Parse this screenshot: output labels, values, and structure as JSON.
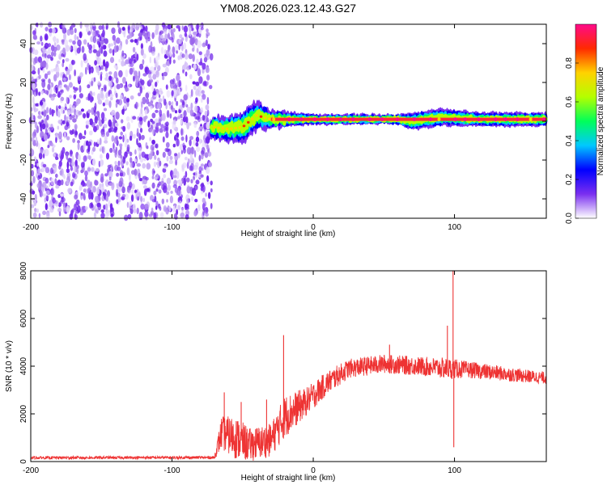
{
  "title": "YM08.2026.023.12.43.G27",
  "chart_data": [
    {
      "type": "heatmap",
      "name": "spectrogram",
      "xlabel": "Height of straight line (km)",
      "ylabel": "Frequency (Hz)",
      "xlim": [
        -200,
        165
      ],
      "ylim": [
        -50,
        50
      ],
      "xticks": [
        -200,
        -100,
        0,
        100
      ],
      "yticks": [
        -40,
        -20,
        0,
        20,
        40
      ],
      "noise_region_x": [
        -200,
        -72
      ],
      "signal_start_x": -72,
      "colorbar": {
        "label": "Normalized spectral amplitude",
        "range": [
          0.0,
          1.0
        ],
        "ticks": [
          0.0,
          0.2,
          0.4,
          0.6,
          0.8
        ],
        "colors": [
          "#ffffff",
          "#7a2ff0",
          "#0000ff",
          "#00c8ff",
          "#00ff5a",
          "#b4ff00",
          "#ffd200",
          "#ff2a00",
          "#ff0a8a"
        ]
      },
      "ridge_frequency_hz": 1.0,
      "ridge_profile": [
        {
          "x": -72,
          "f": -3,
          "width": 5
        },
        {
          "x": -60,
          "f": -4,
          "width": 6
        },
        {
          "x": -50,
          "f": -3,
          "width": 8
        },
        {
          "x": -40,
          "f": 3,
          "width": 7
        },
        {
          "x": -30,
          "f": 1,
          "width": 4
        },
        {
          "x": -15,
          "f": 1,
          "width": 3
        },
        {
          "x": 0,
          "f": 1,
          "width": 2
        },
        {
          "x": 60,
          "f": 1,
          "width": 2
        },
        {
          "x": 70,
          "f": 0,
          "width": 4
        },
        {
          "x": 90,
          "f": 2,
          "width": 4
        },
        {
          "x": 120,
          "f": 1,
          "width": 3
        },
        {
          "x": 165,
          "f": 1,
          "width": 3
        }
      ]
    },
    {
      "type": "line",
      "name": "snr",
      "xlabel": "Height of straight line (km)",
      "ylabel": "SNR (10 * v/v)",
      "xlim": [
        -200,
        165
      ],
      "ylim": [
        0,
        8000
      ],
      "xticks": [
        -200,
        -100,
        0,
        100
      ],
      "yticks": [
        0,
        2000,
        4000,
        6000,
        8000
      ],
      "color": "#ee3333",
      "envelope": [
        {
          "x": -200,
          "mean": 160,
          "noise": 60
        },
        {
          "x": -70,
          "mean": 170,
          "noise": 60
        },
        {
          "x": -65,
          "mean": 1200,
          "noise": 700
        },
        {
          "x": -55,
          "mean": 1000,
          "noise": 900
        },
        {
          "x": -45,
          "mean": 700,
          "noise": 700
        },
        {
          "x": -30,
          "mean": 900,
          "noise": 700
        },
        {
          "x": -20,
          "mean": 1900,
          "noise": 900
        },
        {
          "x": -5,
          "mean": 2500,
          "noise": 600
        },
        {
          "x": 10,
          "mean": 3300,
          "noise": 500
        },
        {
          "x": 25,
          "mean": 3900,
          "noise": 400
        },
        {
          "x": 50,
          "mean": 4100,
          "noise": 400
        },
        {
          "x": 75,
          "mean": 4000,
          "noise": 400
        },
        {
          "x": 95,
          "mean": 3900,
          "noise": 450
        },
        {
          "x": 110,
          "mean": 3850,
          "noise": 350
        },
        {
          "x": 140,
          "mean": 3650,
          "noise": 300
        },
        {
          "x": 165,
          "mean": 3500,
          "noise": 250
        }
      ],
      "spikes": [
        {
          "x": -21,
          "y": 5300
        },
        {
          "x": -63,
          "y": 2900
        },
        {
          "x": -51,
          "y": 2500
        },
        {
          "x": -33,
          "y": 2600
        },
        {
          "x": 54,
          "y": 4900
        },
        {
          "x": 95,
          "y": 5700
        },
        {
          "x": 99,
          "y": 8000
        },
        {
          "x": 99.5,
          "y": 600
        }
      ]
    }
  ]
}
